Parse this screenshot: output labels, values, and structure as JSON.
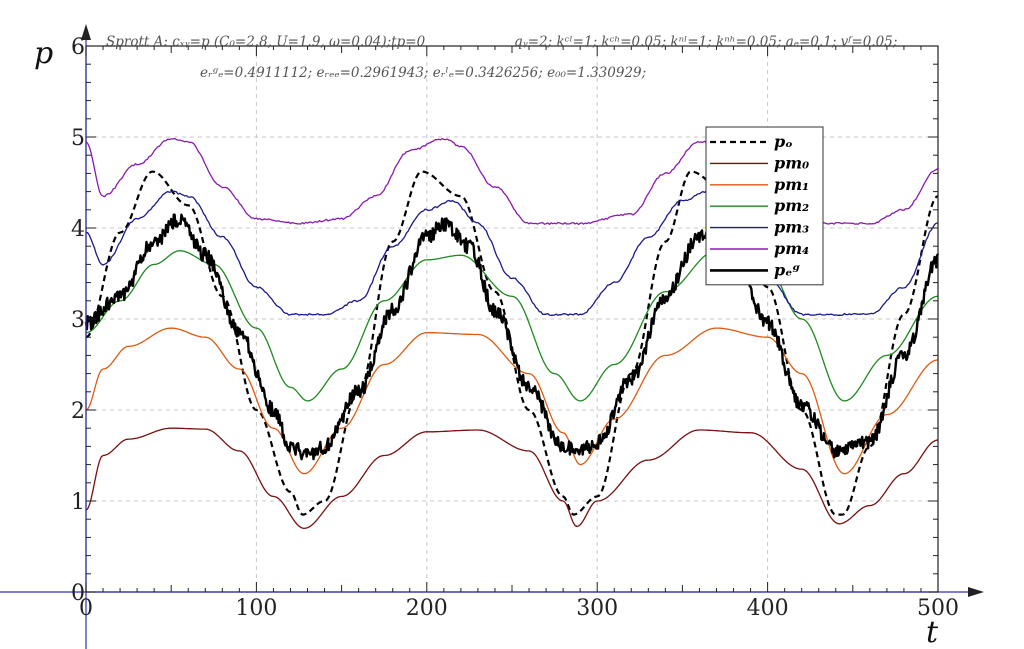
{
  "chart_data": {
    "type": "line",
    "header_line1_left": "Sprott A: cₓᵧ=p (C₀=2.8, U=1.9, ω=0.04);tp=0",
    "header_line1_right": "qᵧ=2; kᶜˡ=1; kᶜʰ=0.05; kⁿˡ=1; kⁿʰ=0.05; aₑ=0.1; vᶠ=0.05;",
    "header_line2": "eᵣᵍₑ=0.4911112; eᵣₑₑ=0.2961943; eᵣˡₑ=0.3426256; e₀₀=1.330929;",
    "xlabel": "t",
    "ylabel": "p",
    "xlim": [
      0,
      500
    ],
    "ylim": [
      0,
      6
    ],
    "xticks": [
      "0",
      "100",
      "200",
      "300",
      "400",
      "500"
    ],
    "yticks": [
      "0",
      "1",
      "2",
      "3",
      "4",
      "5",
      "6"
    ],
    "grid": true,
    "legend_position": "upper-right",
    "series": [
      {
        "name": "pₒ",
        "color": "#000000",
        "dashed": true,
        "bold": false,
        "x": [
          0,
          20,
          39,
          60,
          80,
          100,
          120,
          127,
          140,
          160,
          180,
          197,
          220,
          240,
          260,
          280,
          286,
          300,
          320,
          340,
          355,
          380,
          400,
          420,
          440,
          444,
          460,
          480,
          500
        ],
        "y": [
          2.8,
          3.95,
          4.62,
          4.25,
          3.25,
          2.0,
          1.1,
          0.85,
          1.0,
          2.2,
          3.85,
          4.62,
          4.35,
          3.3,
          2.0,
          1.05,
          0.85,
          1.05,
          2.4,
          3.85,
          4.62,
          4.3,
          3.35,
          2.0,
          0.85,
          0.85,
          1.6,
          3.05,
          4.35
        ]
      },
      {
        "name": "pm₀",
        "color": "#7a1010",
        "dashed": false,
        "bold": false,
        "x": [
          0,
          10,
          25,
          50,
          70,
          90,
          110,
          128,
          150,
          175,
          200,
          230,
          260,
          280,
          288,
          300,
          330,
          360,
          390,
          420,
          442,
          460,
          480,
          500
        ],
        "y": [
          0.9,
          1.5,
          1.68,
          1.8,
          1.79,
          1.55,
          1.05,
          0.7,
          1.05,
          1.5,
          1.76,
          1.78,
          1.55,
          1.0,
          0.72,
          1.0,
          1.45,
          1.78,
          1.75,
          1.35,
          0.75,
          0.95,
          1.3,
          1.67
        ]
      },
      {
        "name": "pm₁",
        "color": "#e05a10",
        "dashed": false,
        "bold": false,
        "x": [
          0,
          10,
          25,
          50,
          70,
          90,
          110,
          128,
          150,
          175,
          200,
          230,
          260,
          280,
          290,
          310,
          340,
          370,
          400,
          420,
          445,
          470,
          500
        ],
        "y": [
          2.0,
          2.45,
          2.7,
          2.9,
          2.8,
          2.45,
          1.8,
          1.3,
          1.8,
          2.5,
          2.85,
          2.83,
          2.4,
          1.75,
          1.4,
          1.9,
          2.6,
          2.9,
          2.8,
          2.4,
          1.3,
          1.95,
          2.55
        ]
      },
      {
        "name": "pm₂",
        "color": "#1f8a1f",
        "dashed": false,
        "bold": false,
        "x": [
          0,
          20,
          40,
          55,
          75,
          100,
          120,
          130,
          150,
          175,
          200,
          220,
          250,
          275,
          290,
          310,
          340,
          370,
          400,
          420,
          445,
          470,
          500
        ],
        "y": [
          2.85,
          3.2,
          3.6,
          3.75,
          3.6,
          2.9,
          2.25,
          2.1,
          2.45,
          3.2,
          3.65,
          3.7,
          3.25,
          2.4,
          2.1,
          2.5,
          3.3,
          3.75,
          3.55,
          3.0,
          2.1,
          2.6,
          3.25
        ]
      },
      {
        "name": "pm₃",
        "color": "#1a1a8c",
        "dashed": false,
        "bold": false,
        "x": [
          0,
          10,
          30,
          50,
          60,
          80,
          100,
          120,
          140,
          160,
          180,
          200,
          215,
          230,
          250,
          270,
          290,
          310,
          330,
          350,
          365,
          380,
          400,
          420,
          440,
          460,
          480,
          500
        ],
        "y": [
          3.95,
          3.6,
          4.1,
          4.4,
          4.35,
          3.9,
          3.35,
          3.05,
          3.05,
          3.2,
          3.8,
          4.2,
          4.3,
          4.05,
          3.45,
          3.05,
          3.05,
          3.4,
          3.9,
          4.3,
          4.4,
          4.1,
          3.45,
          3.05,
          3.05,
          3.05,
          3.35,
          4.05
        ]
      },
      {
        "name": "pm₄",
        "color": "#8a1ab0",
        "dashed": false,
        "bold": false,
        "x": [
          0,
          10,
          30,
          50,
          60,
          80,
          100,
          125,
          150,
          170,
          190,
          210,
          220,
          240,
          260,
          290,
          320,
          340,
          360,
          380,
          400,
          430,
          460,
          480,
          500
        ],
        "y": [
          4.95,
          4.35,
          4.7,
          4.98,
          4.95,
          4.45,
          4.1,
          4.05,
          4.1,
          4.35,
          4.85,
          4.98,
          4.9,
          4.45,
          4.05,
          4.05,
          4.15,
          4.6,
          4.95,
          4.85,
          4.35,
          4.05,
          4.05,
          4.2,
          4.65
        ]
      },
      {
        "name": "pₑᵍ",
        "color": "#000000",
        "dashed": false,
        "bold": true,
        "x": [
          0,
          20,
          40,
          55,
          70,
          90,
          110,
          120,
          130,
          140,
          160,
          180,
          200,
          210,
          225,
          240,
          260,
          280,
          290,
          300,
          320,
          340,
          360,
          370,
          380,
          400,
          420,
          440,
          460,
          480,
          500
        ],
        "y": [
          2.95,
          3.25,
          3.85,
          4.1,
          3.7,
          2.85,
          2.0,
          1.6,
          1.5,
          1.6,
          2.2,
          3.1,
          3.9,
          4.05,
          3.8,
          3.1,
          2.25,
          1.6,
          1.55,
          1.65,
          2.35,
          3.25,
          3.9,
          4.0,
          3.75,
          2.95,
          2.05,
          1.55,
          1.65,
          2.6,
          3.65
        ]
      }
    ]
  }
}
